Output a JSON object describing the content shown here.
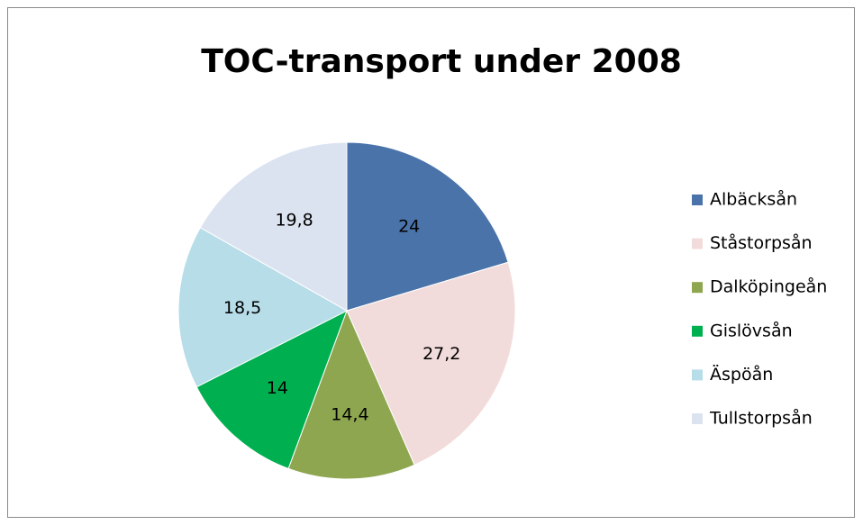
{
  "chart_data": {
    "type": "pie",
    "title": "TOC-transport under 2008",
    "categories": [
      "Albäcksån",
      "Ståstorpsån",
      "Dalköpingeån",
      "Gislövsån",
      "Äspöån",
      "Tullstorpsån"
    ],
    "values": [
      24,
      27.2,
      14.4,
      14,
      18.5,
      19.8
    ],
    "value_labels": [
      "24",
      "27,2",
      "14,4",
      "14",
      "18,5",
      "19,8"
    ],
    "colors": [
      "#4a73aa",
      "#f2dcdb",
      "#8ea64f",
      "#00b050",
      "#b6dde8",
      "#dce3f0"
    ],
    "legend": "right"
  }
}
